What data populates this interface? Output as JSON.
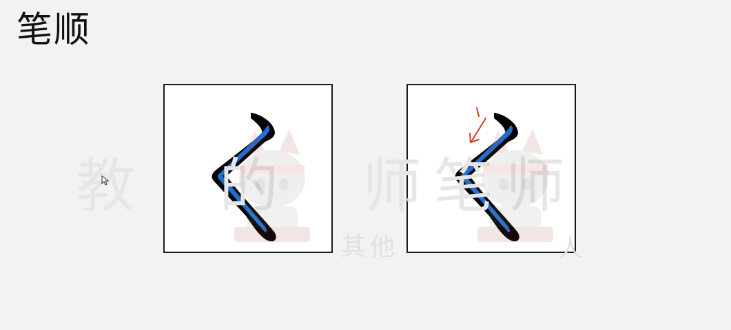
{
  "page": {
    "title": "笔顺"
  },
  "watermark": {
    "main": "教　的　师笔师",
    "sub": "其他",
    "sub2": "人"
  },
  "panels": [
    {
      "name": "stroke-shape",
      "direction_arrow": false
    },
    {
      "name": "stroke-shape-with-direction",
      "direction_arrow": true
    }
  ],
  "colors": {
    "background": "#f2f2f2",
    "stroke_outline": "#000000",
    "stroke_fill": "#1f6fd0",
    "arrow": "#d03a2a",
    "frame": "#1a1a1a"
  },
  "icons": {
    "cursor": "mouse-pointer-icon",
    "arrow": "stroke-direction-arrow-icon"
  }
}
